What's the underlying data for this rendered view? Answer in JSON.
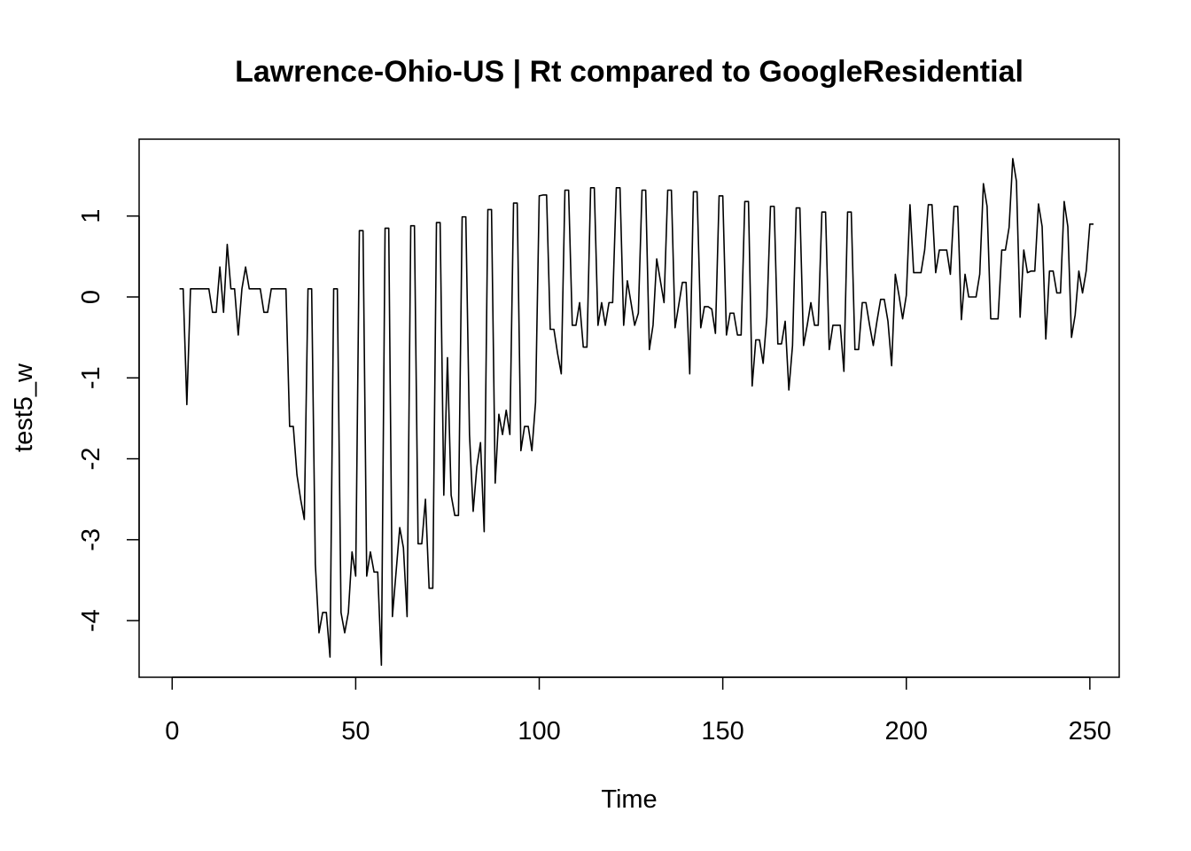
{
  "chart_data": {
    "type": "line",
    "title": "Lawrence-Ohio-US | Rt compared to GoogleResidential",
    "xlabel": "Time",
    "ylabel": "test5_w",
    "xlim": [
      -9,
      258
    ],
    "ylim": [
      -4.7,
      1.95
    ],
    "x_ticks": [
      0,
      50,
      100,
      150,
      200,
      250
    ],
    "y_ticks": [
      -4,
      -3,
      -2,
      -1,
      0,
      1
    ],
    "grid": false,
    "legend": "none",
    "line_color": "#000000",
    "series": [
      {
        "name": "test5_w",
        "x_start": 2,
        "values": [
          0.1,
          0.1,
          -1.33,
          0.1,
          0.1,
          0.1,
          0.1,
          0.1,
          0.1,
          -0.19,
          -0.19,
          0.37,
          -0.19,
          0.65,
          0.1,
          0.1,
          -0.47,
          0.1,
          0.37,
          0.1,
          0.1,
          0.1,
          0.1,
          -0.19,
          -0.19,
          0.1,
          0.1,
          0.1,
          0.1,
          0.1,
          -1.6,
          -1.6,
          -2.2,
          -2.5,
          -2.75,
          0.1,
          0.1,
          -3.3,
          -4.15,
          -3.9,
          -3.9,
          -4.45,
          0.1,
          0.1,
          -3.9,
          -4.15,
          -3.9,
          -3.15,
          -3.45,
          0.82,
          0.82,
          -3.45,
          -3.15,
          -3.4,
          -3.4,
          -4.55,
          0.85,
          0.85,
          -3.95,
          -3.4,
          -2.85,
          -3.1,
          -3.95,
          0.88,
          0.88,
          -3.05,
          -3.05,
          -2.5,
          -3.6,
          -3.6,
          0.92,
          0.92,
          -2.45,
          -0.75,
          -2.45,
          -2.7,
          -2.7,
          0.99,
          0.99,
          -1.7,
          -2.65,
          -2.1,
          -1.8,
          -2.9,
          1.08,
          1.08,
          -2.3,
          -1.45,
          -1.7,
          -1.4,
          -1.7,
          1.16,
          1.16,
          -1.9,
          -1.6,
          -1.6,
          -1.9,
          -1.3,
          1.25,
          1.26,
          1.26,
          -0.4,
          -0.4,
          -0.7,
          -0.95,
          1.32,
          1.32,
          -0.35,
          -0.35,
          -0.07,
          -0.62,
          -0.62,
          1.35,
          1.35,
          -0.35,
          -0.07,
          -0.35,
          -0.07,
          -0.07,
          1.35,
          1.35,
          -0.35,
          0.2,
          -0.07,
          -0.35,
          -0.2,
          1.32,
          1.32,
          -0.65,
          -0.35,
          0.47,
          0.2,
          -0.07,
          1.32,
          1.32,
          -0.38,
          -0.1,
          0.18,
          0.18,
          -0.95,
          1.3,
          1.3,
          -0.38,
          -0.12,
          -0.12,
          -0.15,
          -0.45,
          1.25,
          1.25,
          -0.47,
          -0.2,
          -0.2,
          -0.47,
          -0.47,
          1.18,
          1.18,
          -1.1,
          -0.53,
          -0.53,
          -0.82,
          -0.25,
          1.12,
          1.12,
          -0.58,
          -0.58,
          -0.3,
          -1.15,
          -0.6,
          1.1,
          1.1,
          -0.6,
          -0.35,
          -0.07,
          -0.35,
          -0.35,
          1.05,
          1.05,
          -0.65,
          -0.35,
          -0.35,
          -0.35,
          -0.92,
          1.05,
          1.05,
          -0.65,
          -0.65,
          -0.07,
          -0.07,
          -0.35,
          -0.6,
          -0.3,
          -0.03,
          -0.03,
          -0.3,
          -0.85,
          0.28,
          0.02,
          -0.27,
          0.02,
          1.14,
          0.3,
          0.3,
          0.3,
          0.58,
          1.14,
          1.14,
          0.3,
          0.58,
          0.58,
          0.58,
          0.28,
          1.12,
          1.12,
          -0.28,
          0.28,
          0.0,
          0.0,
          0.0,
          0.28,
          1.4,
          1.12,
          -0.27,
          -0.27,
          -0.27,
          0.58,
          0.58,
          0.86,
          1.71,
          1.43,
          -0.25,
          0.58,
          0.3,
          0.32,
          0.32,
          1.15,
          0.87,
          -0.52,
          0.32,
          0.32,
          0.05,
          0.05,
          1.18,
          0.87,
          -0.5,
          -0.22,
          0.32,
          0.05,
          0.32,
          0.9,
          0.9
        ]
      }
    ]
  }
}
